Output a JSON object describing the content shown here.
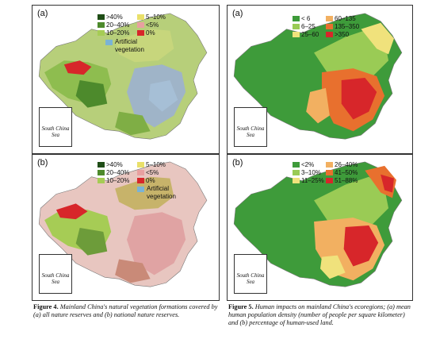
{
  "panels": {
    "fig4a": {
      "label": "(a)",
      "legend": [
        {
          "label": ">40%",
          "color": "#1f4d16"
        },
        {
          "label": "5–10%",
          "color": "#e9e06a"
        },
        {
          "label": "20–40%",
          "color": "#4d8a2c"
        },
        {
          "label": "<5%",
          "color": "#e8a0a0"
        },
        {
          "label": "10–20%",
          "color": "#a6cc55"
        },
        {
          "label": "0%",
          "color": "#d7262a"
        },
        {
          "label": "Artificial vegetation",
          "color": "#7ab3d6"
        }
      ],
      "inset": "South China Sea"
    },
    "fig4b": {
      "label": "(b)",
      "legend": [
        {
          "label": ">40%",
          "color": "#1f4d16"
        },
        {
          "label": "5–10%",
          "color": "#e9e06a"
        },
        {
          "label": "20–40%",
          "color": "#4d8a2c"
        },
        {
          "label": "<5%",
          "color": "#e8a0a0"
        },
        {
          "label": "10–20%",
          "color": "#a6cc55"
        },
        {
          "label": "0%",
          "color": "#d7262a"
        },
        {
          "label": "Artificial vegetation",
          "color": "#7ab3d6"
        }
      ],
      "inset": "South China Sea"
    },
    "fig5a": {
      "label": "(a)",
      "legend": [
        {
          "label": "< 6",
          "color": "#3e9b3a"
        },
        {
          "label": "60–135",
          "color": "#f2b061"
        },
        {
          "label": "6–25",
          "color": "#9acb55"
        },
        {
          "label": "135–350",
          "color": "#e8702e"
        },
        {
          "label": "25–60",
          "color": "#f0e27c"
        },
        {
          "label": ">350",
          "color": "#d7262a"
        }
      ],
      "inset": "South China Sea"
    },
    "fig5b": {
      "label": "(b)",
      "legend": [
        {
          "label": "<2%",
          "color": "#3e9b3a"
        },
        {
          "label": "26–40%",
          "color": "#f2b061"
        },
        {
          "label": "3–10%",
          "color": "#9acb55"
        },
        {
          "label": "41–50%",
          "color": "#e8702e"
        },
        {
          "label": "11–25%",
          "color": "#f0e27c"
        },
        {
          "label": "51–88%",
          "color": "#d7262a"
        }
      ],
      "inset": "South China Sea"
    }
  },
  "captions": {
    "fig4": {
      "label": "Figure 4.",
      "text": "Mainland China's natural vegetation formations covered by (a) all nature reserves and (b) national nature reserves."
    },
    "fig5": {
      "label": "Figure 5.",
      "text": "Human impacts on mainland China's ecoregions; (a) mean human population density (number of people per square kilometer) and (b) percentage of human-used land."
    }
  }
}
